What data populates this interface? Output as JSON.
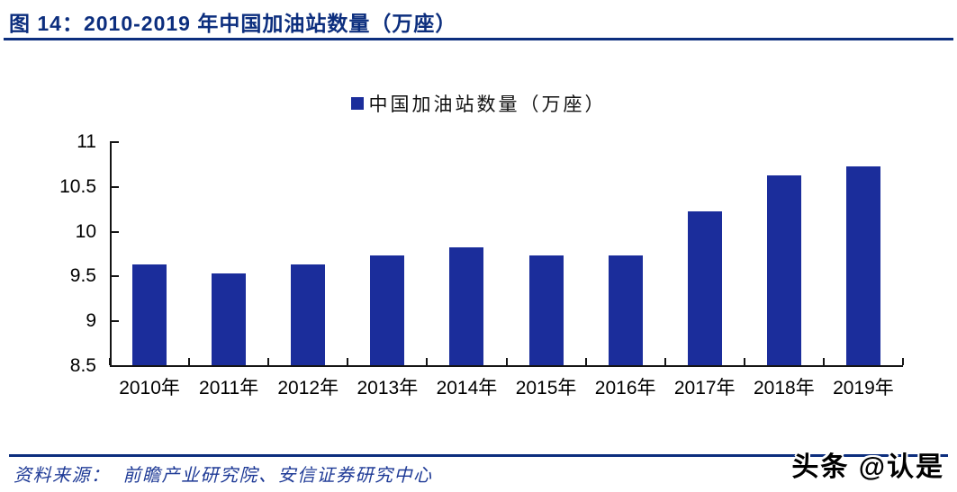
{
  "figure": {
    "title": "图 14：2010-2019 年中国加油站数量（万座）",
    "source_label": "资料来源：",
    "source_text": "前瞻产业研究院、安信证券研究中心",
    "watermark": "头条 @认是"
  },
  "colors": {
    "bar": "#1b2d9b",
    "accent_navy": "#0c2e7e",
    "axis": "#151515",
    "source_text": "#1e3a96"
  },
  "chart_data": {
    "type": "bar",
    "title": "",
    "categories": [
      "2010年",
      "2011年",
      "2012年",
      "2013年",
      "2014年",
      "2015年",
      "2016年",
      "2017年",
      "2018年",
      "2019年"
    ],
    "values": [
      9.62,
      9.52,
      9.62,
      9.72,
      9.82,
      9.72,
      9.72,
      10.22,
      10.62,
      10.72
    ],
    "legend": [
      "中国加油站数量（万座）"
    ],
    "legend_position": "top-center",
    "xlabel": "",
    "ylabel": "",
    "ylim": [
      8.5,
      11
    ],
    "yticks": [
      8.5,
      9,
      9.5,
      10,
      10.5,
      11
    ],
    "grid": false,
    "bar_color": "#1b2d9b"
  }
}
